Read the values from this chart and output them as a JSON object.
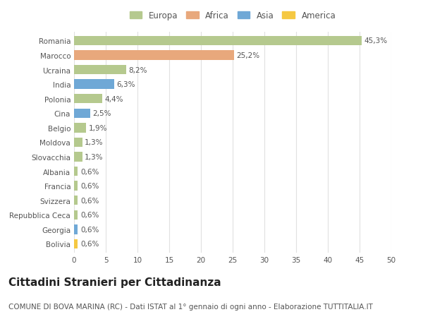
{
  "categories": [
    "Bolivia",
    "Georgia",
    "Repubblica Ceca",
    "Svizzera",
    "Francia",
    "Albania",
    "Slovacchia",
    "Moldova",
    "Belgio",
    "Cina",
    "Polonia",
    "India",
    "Ucraina",
    "Marocco",
    "Romania"
  ],
  "values": [
    0.6,
    0.6,
    0.6,
    0.6,
    0.6,
    0.6,
    1.3,
    1.3,
    1.9,
    2.5,
    4.4,
    6.3,
    8.2,
    25.2,
    45.3
  ],
  "labels": [
    "0,6%",
    "0,6%",
    "0,6%",
    "0,6%",
    "0,6%",
    "0,6%",
    "1,3%",
    "1,3%",
    "1,9%",
    "2,5%",
    "4,4%",
    "6,3%",
    "8,2%",
    "25,2%",
    "45,3%"
  ],
  "colors": [
    "#f5c842",
    "#6fa8d6",
    "#b5c98e",
    "#b5c98e",
    "#b5c98e",
    "#b5c98e",
    "#b5c98e",
    "#b5c98e",
    "#b5c98e",
    "#6fa8d6",
    "#b5c98e",
    "#6fa8d6",
    "#b5c98e",
    "#e8a87c",
    "#b5c98e"
  ],
  "legend_labels": [
    "Europa",
    "Africa",
    "Asia",
    "America"
  ],
  "legend_colors": [
    "#b5c98e",
    "#e8a87c",
    "#6fa8d6",
    "#f5c842"
  ],
  "title": "Cittadini Stranieri per Cittadinanza",
  "subtitle": "COMUNE DI BOVA MARINA (RC) - Dati ISTAT al 1° gennaio di ogni anno - Elaborazione TUTTITALIA.IT",
  "xlim": [
    0,
    50
  ],
  "xticks": [
    0,
    5,
    10,
    15,
    20,
    25,
    30,
    35,
    40,
    45,
    50
  ],
  "background_color": "#ffffff",
  "grid_color": "#e0e0e0",
  "bar_height": 0.65,
  "title_fontsize": 11,
  "subtitle_fontsize": 7.5,
  "label_fontsize": 7.5,
  "tick_fontsize": 7.5,
  "legend_fontsize": 8.5
}
